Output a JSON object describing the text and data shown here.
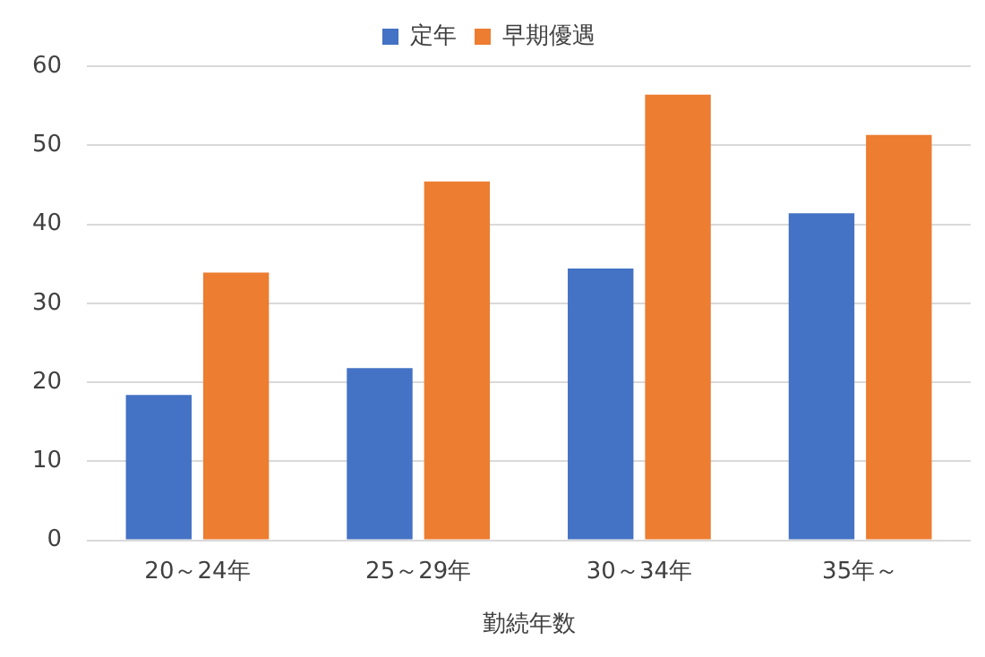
{
  "chart_data": {
    "type": "bar",
    "xlabel": "勤続年数",
    "categories": [
      "20～24年",
      "25～29年",
      "30～34年",
      "35年～"
    ],
    "series": [
      {
        "name": "定年",
        "color": "#4472c4",
        "values": [
          18.4,
          21.8,
          34.4,
          41.4
        ]
      },
      {
        "name": "早期優遇",
        "color": "#ed7d31",
        "values": [
          33.9,
          45.4,
          56.4,
          51.3
        ]
      }
    ],
    "ylim": [
      0,
      60
    ],
    "yticks": [
      0,
      10,
      20,
      30,
      40,
      50,
      60
    ],
    "grid": "y",
    "legend": "top"
  }
}
